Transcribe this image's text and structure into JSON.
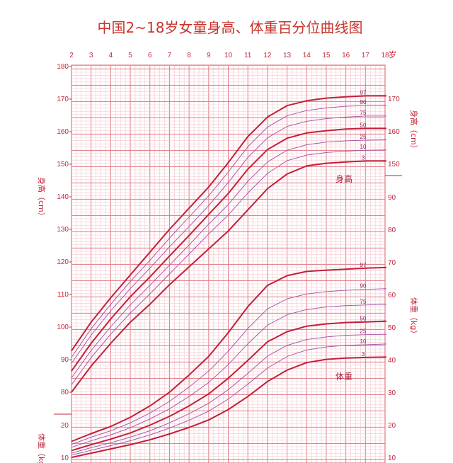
{
  "chart_data": {
    "type": "line",
    "title": "中国2~18岁女童身高、体重百分位曲线图",
    "x_ticks": [
      "2",
      "3",
      "4",
      "5",
      "6",
      "7",
      "8",
      "9",
      "10",
      "11",
      "12",
      "13",
      "14",
      "15",
      "16",
      "17",
      "18"
    ],
    "x_unit": "岁",
    "xlim": [
      2,
      18
    ],
    "height_axis": {
      "label_left": "身高（cm）",
      "label_right": "身高（cm）",
      "ticks_left": [
        80,
        90,
        100,
        110,
        120,
        130,
        140,
        150,
        160,
        170,
        180
      ],
      "ticks_right": [
        150,
        160,
        170
      ],
      "ylim": [
        80,
        180
      ]
    },
    "weight_axis": {
      "label_left": "体重（kg）",
      "label_right": "体重（kg）",
      "ticks_left": [
        10,
        20
      ],
      "ticks_right": [
        10,
        20,
        30,
        40,
        50,
        60,
        70,
        80,
        90
      ],
      "ylim": [
        10,
        90
      ]
    },
    "x": [
      2,
      3,
      4,
      5,
      6,
      7,
      8,
      9,
      10,
      11,
      12,
      13,
      14,
      15,
      16,
      17,
      18
    ],
    "height_series": [
      {
        "name": "97",
        "values": [
          92.7,
          101.5,
          109.0,
          116.0,
          123.0,
          130.0,
          136.5,
          143.0,
          150.5,
          158.5,
          164.5,
          168.0,
          169.5,
          170.3,
          170.7,
          171.0,
          171.0
        ]
      },
      {
        "name": "90",
        "values": [
          90.7,
          99.5,
          107.0,
          114.0,
          120.5,
          127.3,
          133.8,
          140.3,
          147.6,
          155.4,
          161.4,
          164.9,
          166.5,
          167.3,
          167.8,
          168.0,
          168.0
        ]
      },
      {
        "name": "75",
        "values": [
          88.9,
          97.5,
          105.0,
          111.8,
          118.1,
          124.6,
          130.9,
          137.3,
          144.4,
          152.1,
          158.1,
          161.6,
          163.2,
          164.0,
          164.5,
          164.8,
          164.8
        ]
      },
      {
        "name": "50",
        "values": [
          86.5,
          95.0,
          102.5,
          109.3,
          115.4,
          121.8,
          128.1,
          134.6,
          141.0,
          148.5,
          154.5,
          158.0,
          159.6,
          160.3,
          160.8,
          161.0,
          161.0
        ]
      },
      {
        "name": "25",
        "values": [
          84.4,
          92.8,
          100.1,
          106.8,
          112.8,
          119.0,
          125.2,
          131.6,
          137.6,
          144.8,
          150.7,
          154.3,
          156.0,
          156.8,
          157.2,
          157.4,
          157.5
        ]
      },
      {
        "name": "10",
        "values": [
          82.3,
          90.6,
          97.8,
          104.3,
          110.2,
          116.3,
          122.4,
          128.6,
          134.4,
          141.2,
          147.2,
          151.1,
          152.8,
          153.6,
          154.0,
          154.3,
          154.4
        ]
      },
      {
        "name": "3",
        "values": [
          80.0,
          88.0,
          95.0,
          101.5,
          107.0,
          113.0,
          118.5,
          124.0,
          129.5,
          136.0,
          142.5,
          147.0,
          149.5,
          150.3,
          150.7,
          151.0,
          151.0
        ]
      }
    ],
    "weight_series": [
      {
        "name": "97",
        "values": [
          15.1,
          17.5,
          19.7,
          22.5,
          26.0,
          30.2,
          35.5,
          41.2,
          48.5,
          56.5,
          63.0,
          66.0,
          67.3,
          67.7,
          68.0,
          68.3,
          68.5
        ]
      },
      {
        "name": "90",
        "values": [
          14.2,
          16.4,
          18.4,
          20.8,
          23.8,
          27.4,
          31.8,
          36.7,
          42.8,
          49.8,
          55.8,
          58.9,
          60.4,
          61.1,
          61.5,
          61.8,
          62.0
        ]
      },
      {
        "name": "75",
        "values": [
          13.3,
          15.3,
          17.1,
          19.3,
          22.0,
          25.1,
          28.9,
          33.2,
          38.7,
          45.1,
          50.8,
          54.0,
          55.6,
          56.4,
          56.8,
          57.0,
          57.2
        ]
      },
      {
        "name": "50",
        "values": [
          12.3,
          14.1,
          15.8,
          17.7,
          20.1,
          22.8,
          26.0,
          29.7,
          34.5,
          40.0,
          45.7,
          48.8,
          50.5,
          51.2,
          51.6,
          51.8,
          52.0
        ]
      },
      {
        "name": "25",
        "values": [
          11.5,
          13.2,
          14.7,
          16.4,
          18.4,
          20.8,
          23.6,
          26.8,
          31.0,
          36.0,
          41.3,
          44.6,
          46.4,
          47.2,
          47.7,
          47.9,
          48.0
        ]
      },
      {
        "name": "10",
        "values": [
          10.9,
          12.4,
          13.8,
          15.3,
          17.1,
          19.2,
          21.6,
          24.4,
          28.1,
          32.7,
          37.6,
          41.2,
          43.2,
          44.1,
          44.6,
          44.8,
          45.0
        ]
      },
      {
        "name": "3",
        "values": [
          10.2,
          11.5,
          12.8,
          14.1,
          15.6,
          17.4,
          19.4,
          21.7,
          24.9,
          28.9,
          33.5,
          37.0,
          39.3,
          40.3,
          40.7,
          40.9,
          41.0
        ]
      }
    ],
    "region_labels": {
      "height": "身高",
      "weight": "体重"
    },
    "grid": true
  },
  "colors": {
    "major_line": "#e27a86",
    "minor_line": "#f3c6cc",
    "bold_curve": "#c21f3a",
    "thin_curve": "#a64ca0",
    "text": "#c0263a"
  }
}
